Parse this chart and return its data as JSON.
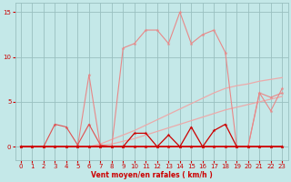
{
  "x": [
    0,
    1,
    2,
    3,
    4,
    5,
    6,
    7,
    8,
    9,
    10,
    11,
    12,
    13,
    14,
    15,
    16,
    17,
    18,
    19,
    20,
    21,
    22,
    23
  ],
  "line_gust": [
    0,
    0,
    0,
    0,
    0,
    0,
    8.0,
    0,
    0,
    11.0,
    11.5,
    13.0,
    13.0,
    11.5,
    15.0,
    11.5,
    12.5,
    13.0,
    10.5,
    0,
    0,
    6.0,
    4.0,
    6.5
  ],
  "line_mean": [
    0,
    0,
    0,
    2.5,
    2.2,
    0.2,
    2.5,
    0.2,
    0,
    0,
    0,
    0,
    0,
    0,
    0,
    0,
    0,
    0,
    0,
    0,
    0,
    0,
    0,
    0
  ],
  "line_freq_dark": [
    0,
    0,
    0,
    0,
    0,
    0,
    0,
    0,
    0,
    0,
    1.5,
    1.5,
    0,
    1.3,
    0,
    2.2,
    0,
    1.8,
    2.5,
    0,
    0,
    0,
    0,
    0
  ],
  "line_base": [
    0,
    0,
    0,
    0,
    0,
    0,
    0,
    0,
    0,
    0,
    0,
    0,
    0,
    0,
    0,
    0,
    0,
    0,
    0,
    0,
    0,
    0,
    0,
    0
  ],
  "line_diag1": [
    0,
    0,
    0,
    0,
    0,
    0,
    0,
    0.3,
    0.8,
    1.3,
    1.8,
    2.4,
    3.0,
    3.6,
    4.2,
    4.8,
    5.4,
    6.0,
    6.5,
    6.8,
    7.0,
    7.3,
    7.5,
    7.7
  ],
  "line_diag2": [
    0,
    0,
    0,
    0,
    0,
    0,
    0,
    0.1,
    0.3,
    0.6,
    0.9,
    1.3,
    1.7,
    2.1,
    2.5,
    2.9,
    3.3,
    3.7,
    4.1,
    4.4,
    4.7,
    5.0,
    5.3,
    5.6
  ],
  "line_upper": [
    0,
    0,
    0,
    0,
    0,
    0,
    0,
    0,
    0,
    0,
    0,
    0,
    0,
    0,
    0,
    0,
    0,
    0,
    0,
    0,
    0,
    6.0,
    5.5,
    6.0
  ],
  "bg_color": "#c4e8e8",
  "grid_color": "#99c0c0",
  "color_dark": "#cc0000",
  "color_mid": "#e05050",
  "color_light": "#e88888",
  "color_lightest": "#ecaaaa",
  "xlabel": "Vent moyen/en rafales ( km/h )",
  "xlim": [
    -0.5,
    23.5
  ],
  "ylim": [
    -1.5,
    16
  ],
  "yticks": [
    0,
    5,
    10,
    15
  ],
  "xticks": [
    0,
    1,
    2,
    3,
    4,
    5,
    6,
    7,
    8,
    9,
    10,
    11,
    12,
    13,
    14,
    15,
    16,
    17,
    18,
    19,
    20,
    21,
    22,
    23
  ]
}
